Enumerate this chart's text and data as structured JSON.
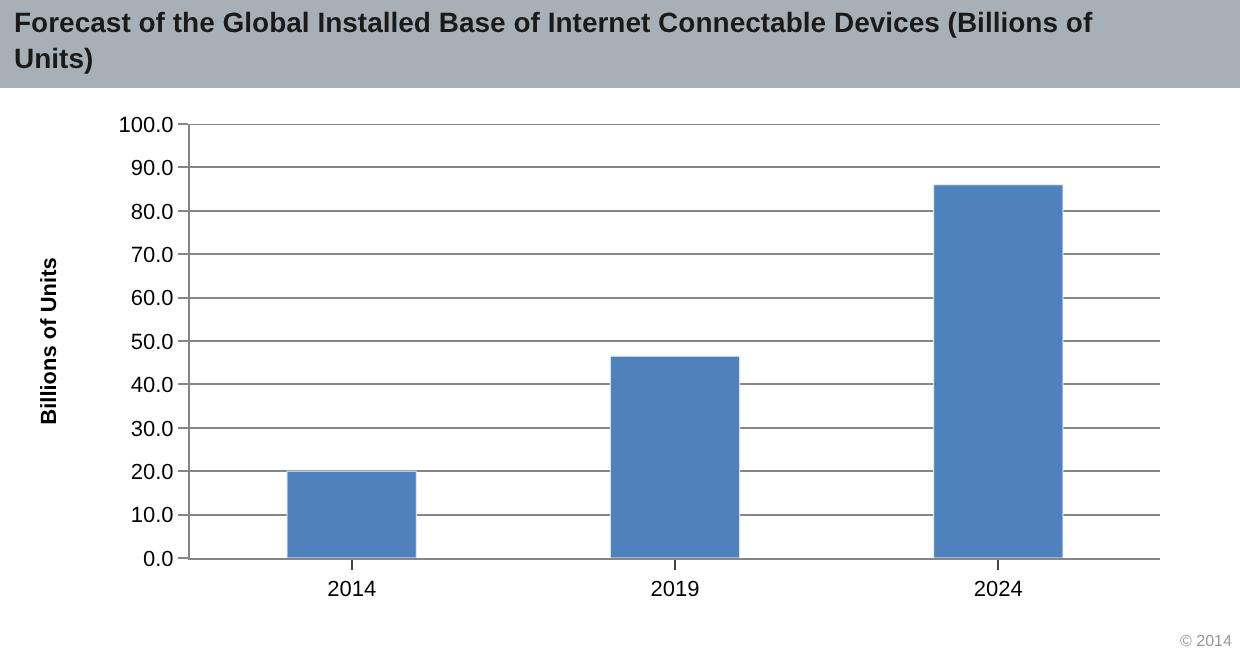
{
  "chart_data": {
    "type": "bar",
    "title": "Forecast of the Global Installed Base of Internet Connectable Devices (Billions of Units)",
    "ylabel": "Billions of Units",
    "categories": [
      "2014",
      "2019",
      "2024"
    ],
    "values": [
      20,
      46.5,
      86
    ],
    "color": "#4f81bd",
    "ylim": [
      0,
      100
    ],
    "yticks": [
      {
        "value": 0,
        "label": "0.0"
      },
      {
        "value": 10,
        "label": "10.0"
      },
      {
        "value": 20,
        "label": "20.0"
      },
      {
        "value": 30,
        "label": "30.0"
      },
      {
        "value": 40,
        "label": "40.0"
      },
      {
        "value": 50,
        "label": "50.0"
      },
      {
        "value": 60,
        "label": "60.0"
      },
      {
        "value": 70,
        "label": "70.0"
      },
      {
        "value": 80,
        "label": "80.0"
      },
      {
        "value": 90,
        "label": "90.0"
      },
      {
        "value": 100,
        "label": "100.0"
      }
    ],
    "grid": "y",
    "annotations": [
      "© 2014"
    ]
  }
}
